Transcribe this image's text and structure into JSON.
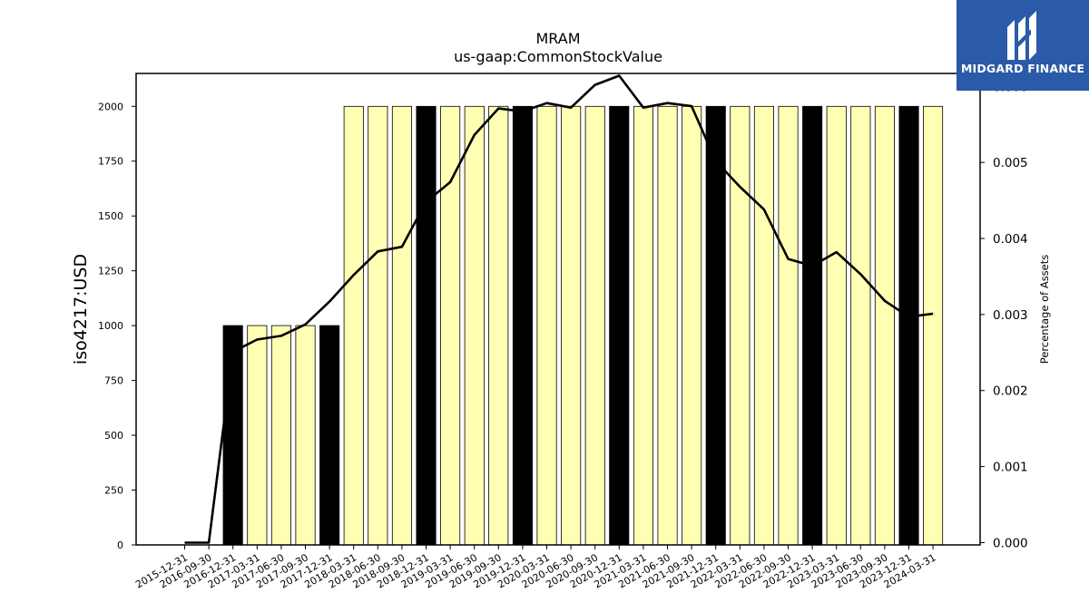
{
  "chart_data": {
    "type": "bar",
    "title": "MRAM",
    "subtitle": "us-gaap:CommonStockValue",
    "ylabel": "iso4217:USD",
    "y2label": "Percentage of Assets",
    "ylim": [
      0,
      2150
    ],
    "y2lim": [
      -3e-05,
      0.00617
    ],
    "yticks": [
      0,
      250,
      500,
      750,
      1000,
      1250,
      1500,
      1750,
      2000
    ],
    "y2ticks": [
      "0.000",
      "0.001",
      "0.002",
      "0.003",
      "0.004",
      "0.005",
      "0.006"
    ],
    "categories": [
      "2015-12-31",
      "2016-09-30",
      "2016-12-31",
      "2017-03-31",
      "2017-06-30",
      "2017-09-30",
      "2017-12-31",
      "2018-03-31",
      "2018-06-30",
      "2018-09-30",
      "2018-12-31",
      "2019-03-31",
      "2019-06-30",
      "2019-09-30",
      "2019-12-31",
      "2020-03-31",
      "2020-06-30",
      "2020-09-30",
      "2020-12-31",
      "2021-03-31",
      "2021-06-30",
      "2021-09-30",
      "2021-12-31",
      "2022-03-31",
      "2022-06-30",
      "2022-09-30",
      "2022-12-31",
      "2023-03-31",
      "2023-06-30",
      "2023-09-30",
      "2023-12-31",
      "2024-03-31"
    ],
    "series": [
      {
        "kind": "bar",
        "values": [
          null,
          null,
          1000,
          1000,
          1000,
          1000,
          1000,
          2000,
          2000,
          2000,
          2000,
          2000,
          2000,
          2000,
          2000,
          2000,
          2000,
          2000,
          2000,
          2000,
          2000,
          2000,
          2000,
          2000,
          2000,
          2000,
          2000,
          2000,
          2000,
          2000,
          2000,
          2000
        ],
        "highlight": [
          false,
          false,
          true,
          false,
          false,
          false,
          true,
          false,
          false,
          false,
          true,
          false,
          false,
          false,
          true,
          false,
          false,
          false,
          true,
          false,
          false,
          false,
          true,
          false,
          false,
          false,
          true,
          false,
          false,
          false,
          true,
          false
        ]
      },
      {
        "kind": "line",
        "axis": "right",
        "values": [
          0.0,
          0.0,
          0.00251,
          0.00267,
          0.00272,
          0.00287,
          0.00317,
          0.00352,
          0.00383,
          0.00389,
          0.00448,
          0.00474,
          0.00536,
          0.00571,
          0.00567,
          0.00578,
          0.00572,
          0.00602,
          0.00614,
          0.00572,
          0.00578,
          0.00574,
          0.00502,
          0.00468,
          0.00438,
          0.00373,
          0.00364,
          0.00382,
          0.00353,
          0.00318,
          0.00297,
          0.00301
        ]
      }
    ],
    "colors": {
      "bar": "#ffffb3",
      "bar_highlight": "#000000",
      "line": "#000000"
    },
    "grid": false
  },
  "logo": {
    "text": "MIDGARD FINANCE"
  }
}
